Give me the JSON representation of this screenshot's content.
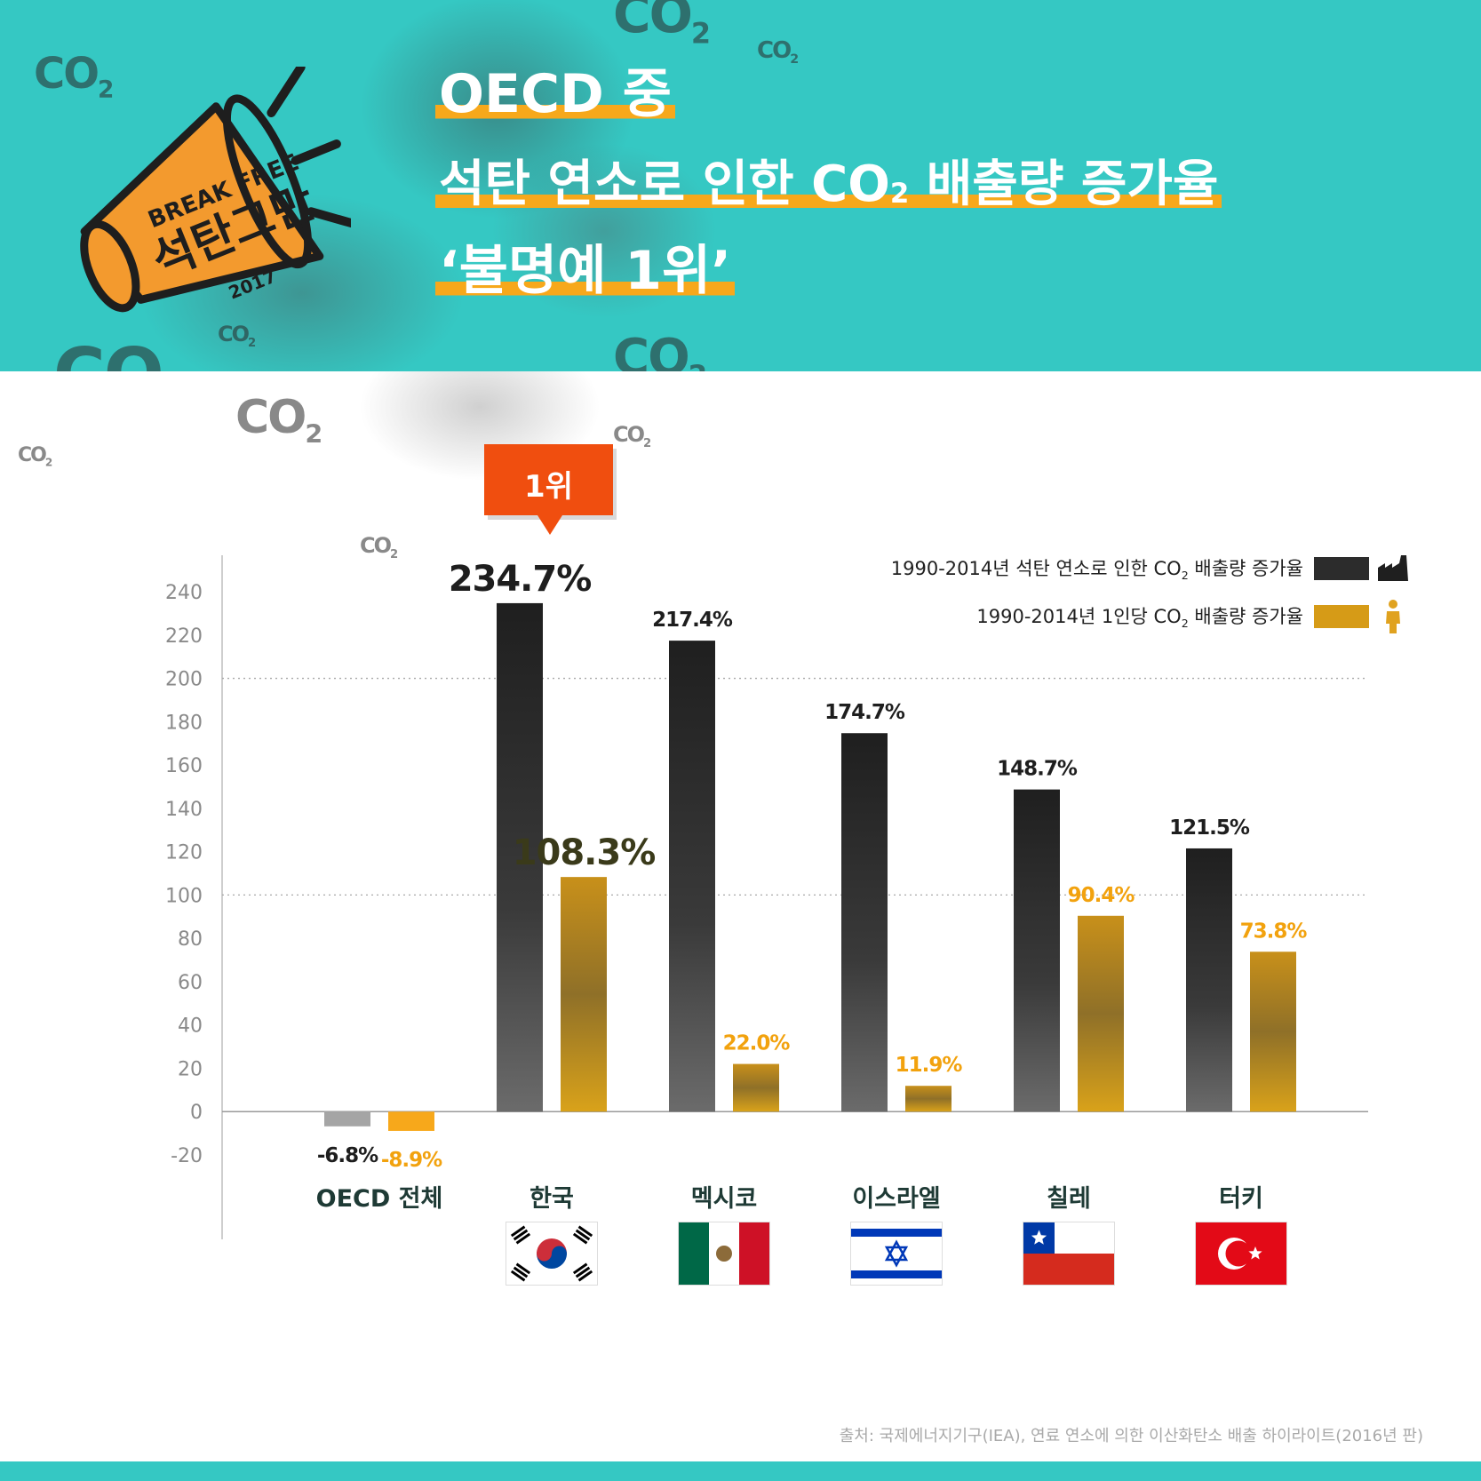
{
  "header": {
    "title_line1": "OECD 중",
    "title_line2_pre": "석탄 연소로 인한 CO",
    "title_line2_sub": "2",
    "title_line2_post": " 배출량 증가율",
    "title_line3": "‘불명예 1위’",
    "co2_label": "CO",
    "co2_sub": "2",
    "logo": {
      "line1": "BREAK FREE",
      "line2": "석탄그만",
      "year": "2017"
    },
    "colors": {
      "teal": "#35c8c3",
      "highlight": "#f7a81b",
      "logo_orange": "#f39a2e"
    }
  },
  "badge": {
    "label": "1위",
    "color": "#f04e0f"
  },
  "legend": [
    {
      "pre": "1990-2014년 석탄 연소로 인한 CO",
      "sub": "2",
      "post": " 배출량 증가율",
      "color": "#2c2c2c",
      "icon": "factory-icon"
    },
    {
      "pre": "1990-2014년 1인당 CO",
      "sub": "2",
      "post": " 배출량 증가율",
      "color": "#d69b17",
      "icon": "person-icon"
    }
  ],
  "chart_data": {
    "type": "bar",
    "categories": [
      "OECD 전체",
      "한국",
      "멕시코",
      "이스라엘",
      "칠레",
      "터키"
    ],
    "series": [
      {
        "name": "1990-2014년 석탄 연소로 인한 CO2 배출량 증가율",
        "values": [
          -6.8,
          234.7,
          217.4,
          174.7,
          148.7,
          121.5
        ],
        "labels": [
          "-6.8%",
          "234.7%",
          "217.4%",
          "174.7%",
          "148.7%",
          "121.5%"
        ]
      },
      {
        "name": "1990-2014년 1인당 CO2 배출량 증가율",
        "values": [
          -8.9,
          108.3,
          22.0,
          11.9,
          90.4,
          73.8
        ],
        "labels": [
          "-8.9%",
          "108.3%",
          "22.0%",
          "11.9%",
          "90.4%",
          "73.8%"
        ]
      }
    ],
    "yticks": [
      "240",
      "220",
      "200",
      "180",
      "160",
      "140",
      "120",
      "100",
      "80",
      "60",
      "40",
      "20",
      "0",
      "-20"
    ],
    "ylim": [
      -20,
      240
    ],
    "gridlines": [
      100,
      200
    ],
    "flags": [
      "",
      "korea-flag",
      "mexico-flag",
      "israel-flag",
      "chile-flag",
      "turkey-flag"
    ]
  },
  "source": "출처: 국제에너지기구(IEA), 연료 연소에 의한 이산화탄소 배출 하이라이트(2016년 판)"
}
